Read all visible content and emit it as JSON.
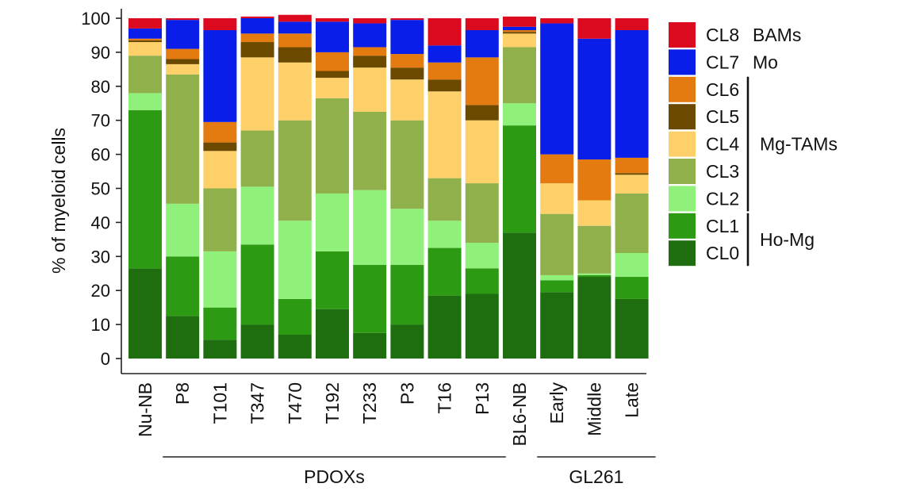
{
  "chart_data": {
    "type": "bar",
    "stacked": true,
    "ylabel": "% of myeloid cells",
    "ylim": [
      0,
      100
    ],
    "yticks": [
      0,
      10,
      20,
      30,
      40,
      50,
      60,
      70,
      80,
      90,
      100
    ],
    "categories": [
      "Nu-NB",
      "P8",
      "T101",
      "T347",
      "T470",
      "T192",
      "T233",
      "P3",
      "T16",
      "P13",
      "BL6-NB",
      "Early",
      "Middle",
      "Late"
    ],
    "series": [
      {
        "name": "CL0",
        "color": "#1e6e0f",
        "values": [
          26.5,
          12.5,
          5.5,
          10,
          7,
          14.5,
          7.5,
          10,
          18.5,
          19,
          37,
          19.5,
          24,
          17.5
        ]
      },
      {
        "name": "CL1",
        "color": "#2c9a12",
        "values": [
          46.5,
          17.5,
          9.5,
          23.5,
          10.5,
          17,
          20,
          17.5,
          14,
          7.5,
          31.5,
          3.5,
          0.5,
          6.5
        ]
      },
      {
        "name": "CL2",
        "color": "#8ff07a",
        "values": [
          5,
          15.5,
          16.5,
          17,
          23,
          17,
          22,
          16.5,
          8,
          7.5,
          6.5,
          1.5,
          0.5,
          7
        ]
      },
      {
        "name": "CL3",
        "color": "#8fb04a",
        "values": [
          11,
          38,
          18.5,
          16.5,
          29.5,
          28,
          23,
          26,
          12.5,
          17.5,
          16.5,
          18,
          14,
          17.5
        ]
      },
      {
        "name": "CL4",
        "color": "#fdd06a",
        "values": [
          4,
          3,
          11,
          21.5,
          17,
          6,
          13,
          12,
          25.5,
          18.5,
          4,
          9,
          7.5,
          5.5
        ]
      },
      {
        "name": "CL5",
        "color": "#6b4a00",
        "values": [
          0.5,
          1.5,
          2.5,
          4.5,
          4.5,
          2,
          3.5,
          3.5,
          3.5,
          4.5,
          0.5,
          0,
          0,
          0.5
        ]
      },
      {
        "name": "CL6",
        "color": "#e47b10",
        "values": [
          0.5,
          3,
          6,
          2.5,
          4,
          5.5,
          2.5,
          4,
          5,
          14,
          0.5,
          8.5,
          12,
          4.5
        ]
      },
      {
        "name": "CL7",
        "color": "#0a1eea",
        "values": [
          3,
          8.5,
          27,
          4.5,
          3.5,
          9,
          7,
          10,
          5,
          8,
          1,
          38.5,
          35.5,
          37.5
        ]
      },
      {
        "name": "CL8",
        "color": "#dc0a1e",
        "values": [
          3,
          0.5,
          3.5,
          0.5,
          2,
          1,
          1.5,
          0.5,
          8,
          3.5,
          3,
          1.5,
          6,
          3.5
        ]
      }
    ],
    "legend": [
      {
        "name": "CL8",
        "color": "#dc0a1e",
        "note": "BAMs"
      },
      {
        "name": "CL7",
        "color": "#0a1eea",
        "note": "Mo"
      },
      {
        "name": "CL6",
        "color": "#e47b10",
        "note": ""
      },
      {
        "name": "CL5",
        "color": "#6b4a00",
        "note": ""
      },
      {
        "name": "CL4",
        "color": "#fdd06a",
        "note": ""
      },
      {
        "name": "CL3",
        "color": "#8fb04a",
        "note": ""
      },
      {
        "name": "CL2",
        "color": "#8ff07a",
        "note": ""
      },
      {
        "name": "CL1",
        "color": "#2c9a12",
        "note": ""
      },
      {
        "name": "CL0",
        "color": "#1e6e0f",
        "note": ""
      }
    ],
    "legend_groups": [
      {
        "label": "Mg-TAMs",
        "members": [
          "CL6",
          "CL5",
          "CL4",
          "CL3",
          "CL2"
        ]
      },
      {
        "label": "Ho-Mg",
        "members": [
          "CL1",
          "CL0"
        ]
      }
    ],
    "category_groups": [
      {
        "label": "PDOXs",
        "from": "P8",
        "to": "P13"
      },
      {
        "label": "GL261",
        "from": "Early",
        "to": "Late"
      }
    ]
  }
}
